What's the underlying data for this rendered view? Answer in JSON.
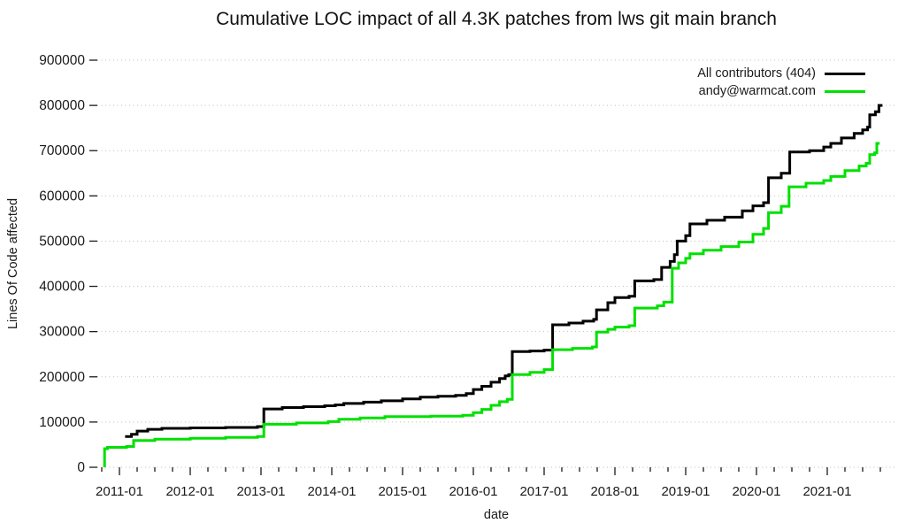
{
  "page": {
    "background": "#ffffff"
  },
  "chart_data": {
    "type": "line",
    "title": "Cumulative LOC impact of all 4.3K patches from lws git main branch",
    "xlabel": "date",
    "ylabel": "Lines Of Code affected",
    "xlim": [
      2010.6875,
      2021.9625
    ],
    "ylim": [
      0,
      900000
    ],
    "grid": "horizontal-dotted",
    "legend_position": "top-right-inside",
    "x_major_ticks": [
      {
        "t": 2011,
        "label": "2011-01"
      },
      {
        "t": 2012,
        "label": "2012-01"
      },
      {
        "t": 2013,
        "label": "2013-01"
      },
      {
        "t": 2014,
        "label": "2014-01"
      },
      {
        "t": 2015,
        "label": "2015-01"
      },
      {
        "t": 2016,
        "label": "2016-01"
      },
      {
        "t": 2017,
        "label": "2017-01"
      },
      {
        "t": 2018,
        "label": "2018-01"
      },
      {
        "t": 2019,
        "label": "2019-01"
      },
      {
        "t": 2020,
        "label": "2020-01"
      },
      {
        "t": 2021,
        "label": "2021-01"
      }
    ],
    "x_minor_tick_interval_years": 0.25,
    "y_ticks": [
      {
        "value": 0,
        "label": "0"
      },
      {
        "value": 100000,
        "label": "100000"
      },
      {
        "value": 200000,
        "label": "200000"
      },
      {
        "value": 300000,
        "label": "300000"
      },
      {
        "value": 400000,
        "label": "400000"
      },
      {
        "value": 500000,
        "label": "500000"
      },
      {
        "value": 600000,
        "label": "600000"
      },
      {
        "value": 700000,
        "label": "700000"
      },
      {
        "value": 800000,
        "label": "800000"
      },
      {
        "value": 900000,
        "label": "900000"
      }
    ],
    "series": [
      {
        "name": "All contributors (404)",
        "color": "#000000",
        "style": "step-after",
        "points": [
          [
            2011.08,
            68000
          ],
          [
            2011.17,
            73000
          ],
          [
            2011.25,
            80000
          ],
          [
            2011.4,
            84000
          ],
          [
            2011.6,
            86000
          ],
          [
            2012.0,
            87000
          ],
          [
            2012.5,
            88000
          ],
          [
            2012.95,
            90000
          ],
          [
            2013.04,
            129000
          ],
          [
            2013.3,
            132000
          ],
          [
            2013.6,
            134000
          ],
          [
            2013.9,
            136000
          ],
          [
            2014.05,
            138000
          ],
          [
            2014.17,
            141000
          ],
          [
            2014.45,
            144000
          ],
          [
            2014.7,
            147000
          ],
          [
            2015.0,
            151000
          ],
          [
            2015.25,
            155000
          ],
          [
            2015.5,
            157000
          ],
          [
            2015.75,
            159000
          ],
          [
            2015.9,
            163000
          ],
          [
            2016.0,
            172000
          ],
          [
            2016.12,
            179000
          ],
          [
            2016.25,
            188000
          ],
          [
            2016.37,
            196000
          ],
          [
            2016.45,
            202000
          ],
          [
            2016.5,
            205000
          ],
          [
            2016.55,
            256000
          ],
          [
            2016.8,
            257000
          ],
          [
            2017.0,
            259000
          ],
          [
            2017.12,
            315000
          ],
          [
            2017.35,
            319000
          ],
          [
            2017.55,
            323000
          ],
          [
            2017.7,
            327000
          ],
          [
            2017.74,
            348000
          ],
          [
            2017.9,
            364000
          ],
          [
            2018.0,
            375000
          ],
          [
            2018.2,
            378000
          ],
          [
            2018.28,
            412000
          ],
          [
            2018.55,
            415000
          ],
          [
            2018.66,
            442000
          ],
          [
            2018.78,
            455000
          ],
          [
            2018.84,
            470000
          ],
          [
            2018.88,
            500000
          ],
          [
            2019.0,
            512000
          ],
          [
            2019.06,
            538000
          ],
          [
            2019.3,
            546000
          ],
          [
            2019.55,
            553000
          ],
          [
            2019.8,
            567000
          ],
          [
            2019.95,
            578000
          ],
          [
            2020.1,
            585000
          ],
          [
            2020.17,
            640000
          ],
          [
            2020.35,
            650000
          ],
          [
            2020.47,
            697000
          ],
          [
            2020.75,
            700000
          ],
          [
            2020.95,
            708000
          ],
          [
            2021.05,
            716000
          ],
          [
            2021.2,
            728000
          ],
          [
            2021.38,
            738000
          ],
          [
            2021.5,
            746000
          ],
          [
            2021.57,
            752000
          ],
          [
            2021.6,
            779000
          ],
          [
            2021.68,
            786000
          ],
          [
            2021.73,
            800000
          ],
          [
            2021.78,
            800000
          ]
        ]
      },
      {
        "name": "andy@warmcat.com",
        "color": "#00e000",
        "style": "step-after",
        "points": [
          [
            2010.79,
            0
          ],
          [
            2010.79,
            41000
          ],
          [
            2010.83,
            44000
          ],
          [
            2011.1,
            46000
          ],
          [
            2011.2,
            59000
          ],
          [
            2011.5,
            62000
          ],
          [
            2012.0,
            64000
          ],
          [
            2012.5,
            66000
          ],
          [
            2012.95,
            68000
          ],
          [
            2013.04,
            95000
          ],
          [
            2013.5,
            98000
          ],
          [
            2013.95,
            101000
          ],
          [
            2014.1,
            106000
          ],
          [
            2014.4,
            109000
          ],
          [
            2014.75,
            112000
          ],
          [
            2015.4,
            113000
          ],
          [
            2015.85,
            115000
          ],
          [
            2016.0,
            121000
          ],
          [
            2016.12,
            128000
          ],
          [
            2016.25,
            137000
          ],
          [
            2016.37,
            145000
          ],
          [
            2016.48,
            150000
          ],
          [
            2016.55,
            205000
          ],
          [
            2016.8,
            210000
          ],
          [
            2017.0,
            216000
          ],
          [
            2017.12,
            260000
          ],
          [
            2017.4,
            263000
          ],
          [
            2017.68,
            266000
          ],
          [
            2017.74,
            299000
          ],
          [
            2017.9,
            305000
          ],
          [
            2018.0,
            310000
          ],
          [
            2018.2,
            313000
          ],
          [
            2018.28,
            352000
          ],
          [
            2018.6,
            357000
          ],
          [
            2018.69,
            365000
          ],
          [
            2018.81,
            440000
          ],
          [
            2018.9,
            452000
          ],
          [
            2019.0,
            462000
          ],
          [
            2019.06,
            472000
          ],
          [
            2019.25,
            480000
          ],
          [
            2019.5,
            488000
          ],
          [
            2019.75,
            498000
          ],
          [
            2019.95,
            515000
          ],
          [
            2020.1,
            528000
          ],
          [
            2020.17,
            563000
          ],
          [
            2020.35,
            577000
          ],
          [
            2020.46,
            620000
          ],
          [
            2020.7,
            628000
          ],
          [
            2020.95,
            634000
          ],
          [
            2021.05,
            643000
          ],
          [
            2021.25,
            656000
          ],
          [
            2021.45,
            666000
          ],
          [
            2021.55,
            672000
          ],
          [
            2021.6,
            691000
          ],
          [
            2021.67,
            695000
          ],
          [
            2021.7,
            716000
          ],
          [
            2021.74,
            716000
          ]
        ]
      }
    ]
  }
}
